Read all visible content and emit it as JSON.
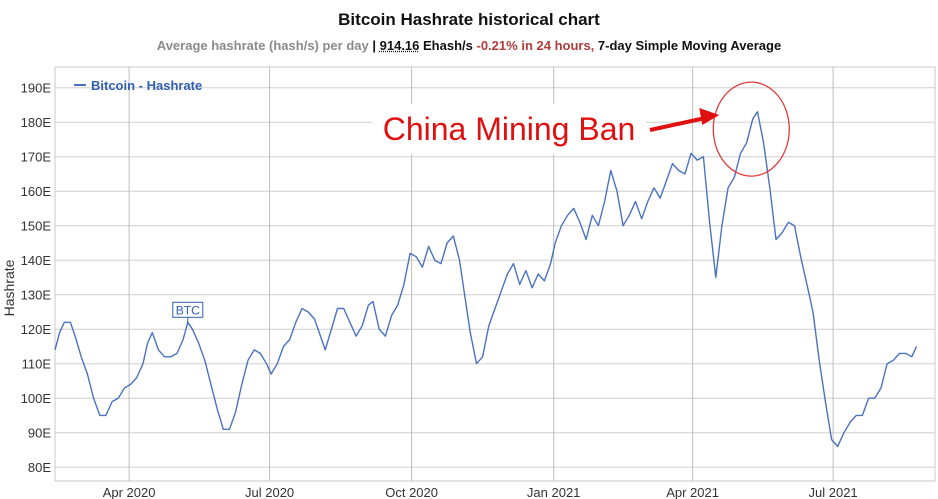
{
  "header": {
    "title": "Bitcoin Hashrate historical chart",
    "subtitle_prefix": "Average hashrate (hash/s) per day",
    "separator": "|",
    "value": "914.16",
    "unit": "Ehash/s",
    "change": "-0.21%",
    "change_period": "in 24 hours,",
    "sma": "7-day Simple Moving Average"
  },
  "chart_data": {
    "type": "line",
    "title": "Bitcoin Hashrate historical chart",
    "ylabel": "Hashrate",
    "xlabel": "",
    "ylim": [
      76,
      196
    ],
    "yticks": [
      80,
      90,
      100,
      110,
      120,
      130,
      140,
      150,
      160,
      170,
      180,
      190
    ],
    "ytick_labels": [
      "80E",
      "90E",
      "100E",
      "110E",
      "120E",
      "130E",
      "140E",
      "150E",
      "160E",
      "170E",
      "180E",
      "190E"
    ],
    "xlim": [
      "2020-02-13",
      "2021-09-05"
    ],
    "xticks": [
      "2020-04-01",
      "2020-07-01",
      "2020-10-01",
      "2021-01-01",
      "2021-04-01",
      "2021-07-01"
    ],
    "xtick_labels": [
      "Apr 2020",
      "Jul 2020",
      "Oct 2020",
      "Jan 2021",
      "Apr 2021",
      "Jul 2021"
    ],
    "grid": true,
    "legend": "top-left",
    "series": [
      {
        "name": "Bitcoin - Hashrate",
        "color": "#4a72c0",
        "points": [
          [
            "2020-02-13",
            114
          ],
          [
            "2020-02-16",
            119
          ],
          [
            "2020-02-19",
            122
          ],
          [
            "2020-02-23",
            122
          ],
          [
            "2020-02-26",
            118
          ],
          [
            "2020-03-01",
            112
          ],
          [
            "2020-03-05",
            107
          ],
          [
            "2020-03-09",
            100
          ],
          [
            "2020-03-13",
            95
          ],
          [
            "2020-03-17",
            95
          ],
          [
            "2020-03-21",
            99
          ],
          [
            "2020-03-25",
            100
          ],
          [
            "2020-03-29",
            103
          ],
          [
            "2020-04-02",
            104
          ],
          [
            "2020-04-06",
            106
          ],
          [
            "2020-04-10",
            110
          ],
          [
            "2020-04-13",
            116
          ],
          [
            "2020-04-16",
            119
          ],
          [
            "2020-04-20",
            114
          ],
          [
            "2020-04-24",
            112
          ],
          [
            "2020-04-28",
            112
          ],
          [
            "2020-05-02",
            113
          ],
          [
            "2020-05-06",
            117
          ],
          [
            "2020-05-09",
            122
          ],
          [
            "2020-05-12",
            120
          ],
          [
            "2020-05-16",
            116
          ],
          [
            "2020-05-20",
            111
          ],
          [
            "2020-05-24",
            104
          ],
          [
            "2020-05-28",
            97
          ],
          [
            "2020-06-01",
            91
          ],
          [
            "2020-06-05",
            91
          ],
          [
            "2020-06-09",
            96
          ],
          [
            "2020-06-13",
            104
          ],
          [
            "2020-06-17",
            111
          ],
          [
            "2020-06-21",
            114
          ],
          [
            "2020-06-25",
            113
          ],
          [
            "2020-06-29",
            110
          ],
          [
            "2020-07-02",
            107
          ],
          [
            "2020-07-06",
            110
          ],
          [
            "2020-07-10",
            115
          ],
          [
            "2020-07-14",
            117
          ],
          [
            "2020-07-18",
            122
          ],
          [
            "2020-07-22",
            126
          ],
          [
            "2020-07-26",
            125
          ],
          [
            "2020-07-30",
            123
          ],
          [
            "2020-08-03",
            118
          ],
          [
            "2020-08-06",
            114
          ],
          [
            "2020-08-10",
            120
          ],
          [
            "2020-08-14",
            126
          ],
          [
            "2020-08-18",
            126
          ],
          [
            "2020-08-22",
            122
          ],
          [
            "2020-08-26",
            118
          ],
          [
            "2020-08-30",
            121
          ],
          [
            "2020-09-03",
            127
          ],
          [
            "2020-09-06",
            128
          ],
          [
            "2020-09-10",
            120
          ],
          [
            "2020-09-14",
            118
          ],
          [
            "2020-09-18",
            124
          ],
          [
            "2020-09-22",
            127
          ],
          [
            "2020-09-26",
            133
          ],
          [
            "2020-09-30",
            142
          ],
          [
            "2020-10-04",
            141
          ],
          [
            "2020-10-08",
            138
          ],
          [
            "2020-10-12",
            144
          ],
          [
            "2020-10-16",
            140
          ],
          [
            "2020-10-20",
            139
          ],
          [
            "2020-10-24",
            145
          ],
          [
            "2020-10-28",
            147
          ],
          [
            "2020-11-01",
            140
          ],
          [
            "2020-11-04",
            131
          ],
          [
            "2020-11-08",
            119
          ],
          [
            "2020-11-12",
            110
          ],
          [
            "2020-11-16",
            112
          ],
          [
            "2020-11-20",
            121
          ],
          [
            "2020-11-24",
            126
          ],
          [
            "2020-11-28",
            131
          ],
          [
            "2020-12-02",
            136
          ],
          [
            "2020-12-06",
            139
          ],
          [
            "2020-12-10",
            133
          ],
          [
            "2020-12-14",
            137
          ],
          [
            "2020-12-18",
            132
          ],
          [
            "2020-12-22",
            136
          ],
          [
            "2020-12-26",
            134
          ],
          [
            "2020-12-30",
            139
          ],
          [
            "2021-01-02",
            145
          ],
          [
            "2021-01-06",
            150
          ],
          [
            "2021-01-10",
            153
          ],
          [
            "2021-01-14",
            155
          ],
          [
            "2021-01-18",
            151
          ],
          [
            "2021-01-22",
            146
          ],
          [
            "2021-01-26",
            153
          ],
          [
            "2021-01-30",
            150
          ],
          [
            "2021-02-03",
            157
          ],
          [
            "2021-02-07",
            166
          ],
          [
            "2021-02-11",
            160
          ],
          [
            "2021-02-15",
            150
          ],
          [
            "2021-02-19",
            153
          ],
          [
            "2021-02-23",
            157
          ],
          [
            "2021-02-27",
            152
          ],
          [
            "2021-03-03",
            157
          ],
          [
            "2021-03-07",
            161
          ],
          [
            "2021-03-11",
            158
          ],
          [
            "2021-03-15",
            163
          ],
          [
            "2021-03-19",
            168
          ],
          [
            "2021-03-23",
            166
          ],
          [
            "2021-03-27",
            165
          ],
          [
            "2021-03-31",
            171
          ],
          [
            "2021-04-04",
            169
          ],
          [
            "2021-04-08",
            170
          ],
          [
            "2021-04-12",
            151
          ],
          [
            "2021-04-16",
            135
          ],
          [
            "2021-04-20",
            150
          ],
          [
            "2021-04-24",
            161
          ],
          [
            "2021-04-28",
            164
          ],
          [
            "2021-05-02",
            171
          ],
          [
            "2021-05-06",
            174
          ],
          [
            "2021-05-10",
            181
          ],
          [
            "2021-05-13",
            183
          ],
          [
            "2021-05-17",
            174
          ],
          [
            "2021-05-21",
            161
          ],
          [
            "2021-05-25",
            146
          ],
          [
            "2021-05-29",
            148
          ],
          [
            "2021-06-02",
            151
          ],
          [
            "2021-06-06",
            150
          ],
          [
            "2021-06-10",
            141
          ],
          [
            "2021-06-14",
            133
          ],
          [
            "2021-06-18",
            125
          ],
          [
            "2021-06-22",
            111
          ],
          [
            "2021-06-26",
            99
          ],
          [
            "2021-06-30",
            88
          ],
          [
            "2021-07-04",
            86
          ],
          [
            "2021-07-08",
            90
          ],
          [
            "2021-07-12",
            93
          ],
          [
            "2021-07-16",
            95
          ],
          [
            "2021-07-20",
            95
          ],
          [
            "2021-07-24",
            100
          ],
          [
            "2021-07-28",
            100
          ],
          [
            "2021-08-01",
            103
          ],
          [
            "2021-08-05",
            110
          ],
          [
            "2021-08-09",
            111
          ],
          [
            "2021-08-13",
            113
          ],
          [
            "2021-08-17",
            113
          ],
          [
            "2021-08-21",
            112
          ],
          [
            "2021-08-24",
            115
          ]
        ]
      }
    ],
    "annotations": [
      {
        "type": "flag",
        "text": "BTC",
        "x": "2020-05-09",
        "y": 122
      },
      {
        "type": "callout",
        "text": "China Mining Ban",
        "x": "2021-05-09",
        "y": 178
      }
    ]
  }
}
